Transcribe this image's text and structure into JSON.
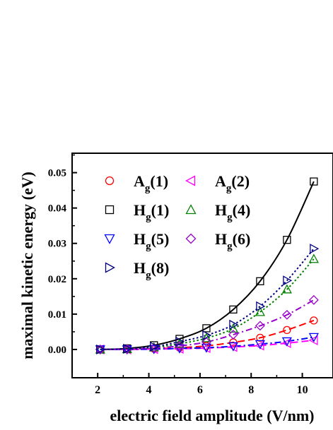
{
  "chart_data": {
    "type": "scatter",
    "title": "",
    "xlabel": "electric field amplitude (V/nm)",
    "ylabel": "maximal kinetic energy (eV)",
    "xlim": [
      1.0,
      11.2
    ],
    "ylim": [
      -0.008,
      0.0555
    ],
    "x_ticks": [
      2,
      4,
      6,
      8,
      10
    ],
    "y_ticks": [
      0.0,
      0.01,
      0.02,
      0.03,
      0.04,
      0.05
    ],
    "x_tick_labels": [
      "2",
      "4",
      "6",
      "8",
      "10"
    ],
    "y_tick_labels": [
      "0.00",
      "0.01",
      "0.02",
      "0.03",
      "0.04",
      "0.05"
    ],
    "grid": false,
    "legend_position": "top-left",
    "series": [
      {
        "name": "A",
        "sub": "g",
        "suffix": "(1)",
        "marker": "circle",
        "color": "#ff0000",
        "line_dash": "dash",
        "x": [
          2.1,
          3.15,
          4.2,
          5.2,
          6.25,
          7.3,
          8.35,
          9.4,
          10.45
        ],
        "y": [
          0.0,
          0.0,
          0.0002,
          0.0005,
          0.001,
          0.002,
          0.0033,
          0.0055,
          0.0082
        ]
      },
      {
        "name": "A",
        "sub": "g",
        "suffix": "(2)",
        "marker": "triangle-left",
        "color": "#ff00ff",
        "line_dash": "dash",
        "x": [
          2.1,
          3.15,
          4.2,
          5.2,
          6.25,
          7.3,
          8.35,
          9.4,
          10.45
        ],
        "y": [
          0.0,
          0.0,
          0.0001,
          0.0002,
          0.0004,
          0.0007,
          0.0011,
          0.0018,
          0.0026
        ]
      },
      {
        "name": "H",
        "sub": "g",
        "suffix": "(1)",
        "marker": "square",
        "color": "#000000",
        "line_dash": "solid",
        "x": [
          2.1,
          3.15,
          4.2,
          5.2,
          6.25,
          7.3,
          8.35,
          9.4,
          10.45
        ],
        "y": [
          0.0,
          0.0003,
          0.0012,
          0.003,
          0.006,
          0.0113,
          0.0193,
          0.031,
          0.0475
        ]
      },
      {
        "name": "H",
        "sub": "g",
        "suffix": "(4)",
        "marker": "triangle-up",
        "color": "#008000",
        "line_dash": "dot",
        "x": [
          2.1,
          3.15,
          4.2,
          5.2,
          6.25,
          7.3,
          8.35,
          9.4,
          10.45
        ],
        "y": [
          0.0,
          0.0001,
          0.0006,
          0.0016,
          0.0032,
          0.0059,
          0.0106,
          0.017,
          0.0256
        ]
      },
      {
        "name": "H",
        "sub": "g",
        "suffix": "(5)",
        "marker": "triangle-down",
        "color": "#0000ff",
        "line_dash": "dashdot",
        "x": [
          2.1,
          3.15,
          4.2,
          5.2,
          6.25,
          7.3,
          8.35,
          9.4,
          10.45
        ],
        "y": [
          0.0,
          0.0,
          0.0001,
          0.0003,
          0.0005,
          0.0009,
          0.0015,
          0.0023,
          0.0035
        ]
      },
      {
        "name": "H",
        "sub": "g",
        "suffix": "(6)",
        "marker": "diamond",
        "color": "#9900cc",
        "line_dash": "dashdot",
        "x": [
          2.1,
          3.15,
          4.2,
          5.2,
          6.25,
          7.3,
          8.35,
          9.4,
          10.45
        ],
        "y": [
          0.0,
          0.0001,
          0.0004,
          0.001,
          0.0021,
          0.0042,
          0.0067,
          0.0098,
          0.014
        ]
      },
      {
        "name": "H",
        "sub": "g",
        "suffix": "(8)",
        "marker": "triangle-right",
        "color": "#000080",
        "line_dash": "dot",
        "x": [
          2.1,
          3.15,
          4.2,
          5.2,
          6.25,
          7.3,
          8.35,
          9.4,
          10.45
        ],
        "y": [
          0.0,
          0.0002,
          0.0008,
          0.0022,
          0.004,
          0.007,
          0.0122,
          0.0195,
          0.0285
        ]
      }
    ]
  }
}
